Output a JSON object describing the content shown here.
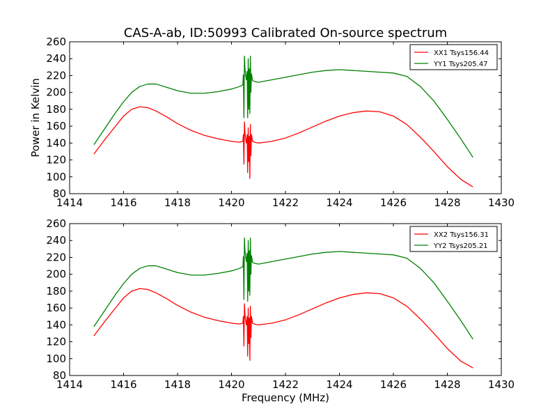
{
  "chart_data": [
    {
      "type": "line",
      "title": "CAS-A-ab, ID:50993 Calibrated On-source spectrum",
      "xlabel": "",
      "ylabel": "Power in Kelvin",
      "xlim": [
        1414,
        1430
      ],
      "ylim": [
        80,
        260
      ],
      "xticks": [
        1414,
        1416,
        1418,
        1420,
        1422,
        1424,
        1426,
        1428,
        1430
      ],
      "yticks": [
        80,
        100,
        120,
        140,
        160,
        180,
        200,
        220,
        240,
        260
      ],
      "grid": false,
      "legend_position": "top-right",
      "series": [
        {
          "name": "XX1 Tsys156.44",
          "color": "#ff0000",
          "x": [
            1414.9,
            1415.3,
            1415.7,
            1416.0,
            1416.3,
            1416.6,
            1416.9,
            1417.2,
            1417.6,
            1418.0,
            1418.5,
            1419.0,
            1419.5,
            1420.0,
            1420.3,
            1420.42,
            1420.44,
            1420.46,
            1420.48,
            1420.5,
            1420.52,
            1420.55,
            1420.58,
            1420.6,
            1420.62,
            1420.64,
            1420.66,
            1420.68,
            1420.7,
            1420.72,
            1420.74,
            1420.78,
            1420.85,
            1421.0,
            1421.5,
            1422.0,
            1422.5,
            1423.0,
            1423.5,
            1424.0,
            1424.5,
            1425.0,
            1425.5,
            1426.0,
            1426.5,
            1427.0,
            1427.5,
            1428.0,
            1428.5,
            1428.95
          ],
          "y": [
            127,
            144,
            160,
            172,
            180,
            183,
            182,
            178,
            171,
            163,
            155,
            149,
            145,
            142,
            141,
            142,
            150,
            115,
            165,
            152,
            146,
            140,
            150,
            105,
            158,
            118,
            148,
            98,
            162,
            125,
            150,
            142,
            141,
            140,
            142,
            146,
            152,
            159,
            166,
            172,
            176,
            178,
            177,
            172,
            162,
            147,
            130,
            112,
            97,
            88
          ]
        }
      ],
      "series_2": [
        {
          "name": "YY1 Tsys205.47",
          "color": "#008000",
          "x": [
            1414.9,
            1415.3,
            1415.7,
            1416.0,
            1416.3,
            1416.6,
            1416.9,
            1417.2,
            1417.6,
            1418.0,
            1418.5,
            1419.0,
            1419.5,
            1420.0,
            1420.3,
            1420.42,
            1420.44,
            1420.46,
            1420.48,
            1420.5,
            1420.52,
            1420.55,
            1420.58,
            1420.6,
            1420.62,
            1420.64,
            1420.66,
            1420.68,
            1420.7,
            1420.72,
            1420.74,
            1420.78,
            1420.85,
            1421.0,
            1421.5,
            1422.0,
            1422.5,
            1423.0,
            1423.5,
            1424.0,
            1424.5,
            1425.0,
            1425.5,
            1426.0,
            1426.5,
            1427.0,
            1427.5,
            1428.0,
            1428.5,
            1428.95
          ],
          "y": [
            138,
            157,
            176,
            189,
            200,
            207,
            210,
            210,
            206,
            202,
            199,
            199,
            201,
            204,
            207,
            209,
            221,
            170,
            243,
            228,
            222,
            215,
            225,
            170,
            240,
            180,
            228,
            175,
            243,
            200,
            222,
            214,
            213,
            212,
            215,
            218,
            221,
            224,
            226,
            227,
            226,
            225,
            224,
            223,
            219,
            207,
            190,
            168,
            145,
            123
          ]
        }
      ]
    },
    {
      "type": "line",
      "title": "",
      "xlabel": "Frequency (MHz)",
      "ylabel": "",
      "xlim": [
        1414,
        1430
      ],
      "ylim": [
        80,
        260
      ],
      "xticks": [
        1414,
        1416,
        1418,
        1420,
        1422,
        1424,
        1426,
        1428,
        1430
      ],
      "yticks": [
        80,
        100,
        120,
        140,
        160,
        180,
        200,
        220,
        240,
        260
      ],
      "grid": false,
      "legend_position": "top-right",
      "series": [
        {
          "name": "XX2 Tsys156.31",
          "color": "#ff0000",
          "x": [
            1414.9,
            1415.3,
            1415.7,
            1416.0,
            1416.3,
            1416.6,
            1416.9,
            1417.2,
            1417.6,
            1418.0,
            1418.5,
            1419.0,
            1419.5,
            1420.0,
            1420.3,
            1420.42,
            1420.44,
            1420.46,
            1420.48,
            1420.5,
            1420.52,
            1420.55,
            1420.58,
            1420.6,
            1420.62,
            1420.64,
            1420.66,
            1420.68,
            1420.7,
            1420.72,
            1420.74,
            1420.78,
            1420.85,
            1421.0,
            1421.5,
            1422.0,
            1422.5,
            1423.0,
            1423.5,
            1424.0,
            1424.5,
            1425.0,
            1425.5,
            1426.0,
            1426.5,
            1427.0,
            1427.5,
            1428.0,
            1428.5,
            1428.95
          ],
          "y": [
            127,
            144,
            160,
            172,
            180,
            183,
            182,
            178,
            171,
            163,
            155,
            149,
            145,
            142,
            141,
            142,
            150,
            115,
            165,
            152,
            146,
            140,
            150,
            103,
            160,
            118,
            148,
            98,
            162,
            125,
            150,
            142,
            141,
            140,
            142,
            146,
            152,
            159,
            166,
            172,
            176,
            178,
            177,
            172,
            162,
            147,
            130,
            112,
            97,
            89
          ]
        }
      ],
      "series_2": [
        {
          "name": "YY2 Tsys205.21",
          "color": "#008000",
          "x": [
            1414.9,
            1415.3,
            1415.7,
            1416.0,
            1416.3,
            1416.6,
            1416.9,
            1417.2,
            1417.6,
            1418.0,
            1418.5,
            1419.0,
            1419.5,
            1420.0,
            1420.3,
            1420.42,
            1420.44,
            1420.46,
            1420.48,
            1420.5,
            1420.52,
            1420.55,
            1420.58,
            1420.6,
            1420.62,
            1420.64,
            1420.66,
            1420.68,
            1420.7,
            1420.72,
            1420.74,
            1420.78,
            1420.85,
            1421.0,
            1421.5,
            1422.0,
            1422.5,
            1423.0,
            1423.5,
            1424.0,
            1424.5,
            1425.0,
            1425.5,
            1426.0,
            1426.5,
            1427.0,
            1427.5,
            1428.0,
            1428.5,
            1428.95
          ],
          "y": [
            138,
            157,
            176,
            189,
            200,
            207,
            210,
            210,
            206,
            202,
            199,
            199,
            201,
            204,
            207,
            209,
            221,
            170,
            243,
            228,
            222,
            215,
            225,
            168,
            240,
            180,
            228,
            175,
            243,
            200,
            222,
            214,
            213,
            212,
            215,
            218,
            221,
            224,
            226,
            227,
            226,
            225,
            224,
            223,
            219,
            207,
            190,
            168,
            145,
            123
          ]
        }
      ]
    }
  ]
}
